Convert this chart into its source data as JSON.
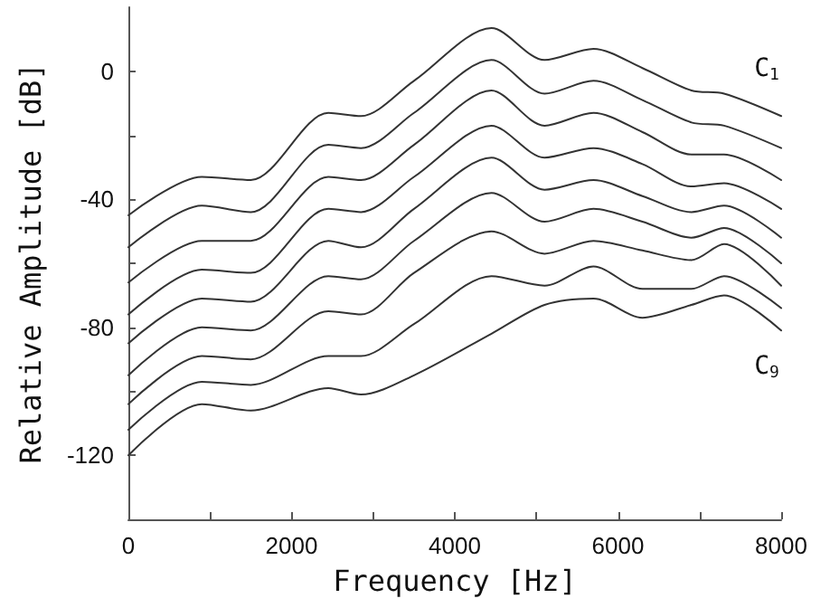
{
  "chart_data": {
    "type": "line",
    "xlabel": "Frequency [Hz]",
    "ylabel": "Relative Amplitude [dB]",
    "x": [
      0,
      900,
      1500,
      2450,
      2850,
      3500,
      4450,
      5100,
      5700,
      6300,
      6900,
      7300,
      8000
    ],
    "series": [
      {
        "color": "#333333",
        "values": [
          -45,
          -33,
          -34,
          -13,
          -14,
          -3,
          13.5,
          3.5,
          7,
          1,
          -6,
          -7,
          -14
        ]
      },
      {
        "color": "#333333",
        "values": [
          -55,
          -42,
          -44,
          -23,
          -24,
          -13,
          3.5,
          -7,
          -3,
          -9,
          -16,
          -17,
          -24
        ]
      },
      {
        "color": "#333333",
        "values": [
          -66,
          -53,
          -53,
          -33,
          -34,
          -23,
          -6,
          -17,
          -13,
          -19,
          -26,
          -26,
          -34
        ]
      },
      {
        "color": "#333333",
        "values": [
          -76,
          -62,
          -63,
          -43,
          -44,
          -33,
          -17,
          -27,
          -24,
          -29,
          -36,
          -35,
          -43
        ]
      },
      {
        "color": "#333333",
        "values": [
          -85,
          -71,
          -72,
          -53,
          -55,
          -43,
          -27,
          -37,
          -34,
          -39,
          -44,
          -42,
          -52
        ]
      },
      {
        "color": "#333333",
        "values": [
          -95,
          -80,
          -81,
          -64,
          -65,
          -53,
          -38,
          -47,
          -43,
          -47,
          -52,
          -49,
          -60
        ]
      },
      {
        "color": "#333333",
        "values": [
          -104,
          -89,
          -90,
          -75,
          -76,
          -63,
          -50,
          -57,
          -53,
          -56,
          -59,
          -54,
          -67
        ]
      },
      {
        "color": "#333333",
        "values": [
          -112,
          -97,
          -98,
          -89,
          -89,
          -79,
          -64,
          -67,
          -61,
          -68,
          -68,
          -64,
          -74
        ]
      },
      {
        "color": "#333333",
        "values": [
          -120,
          -104,
          -106,
          -99,
          -101,
          -95,
          -82,
          -73,
          -71,
          -77,
          -73,
          -70,
          -81
        ]
      }
    ],
    "xlim": [
      0,
      8000
    ],
    "xticks": [
      0,
      {
        "value": 1000,
        "label": null
      },
      2000,
      {
        "value": 3000,
        "label": null
      },
      4000,
      {
        "value": 5000,
        "label": null
      },
      6000,
      {
        "value": 7000,
        "label": null
      },
      8000
    ],
    "ylim": [
      -140,
      20
    ],
    "yticks": [
      -120,
      {
        "value": -100,
        "label": null
      },
      -80,
      {
        "value": -60,
        "label": null
      },
      -40,
      {
        "value": -20,
        "label": null
      },
      0
    ],
    "annotations": [
      "C$_{1}$",
      "C$_{9}$"
    ],
    "grid": false,
    "marker": "none",
    "line_style": "solid"
  }
}
